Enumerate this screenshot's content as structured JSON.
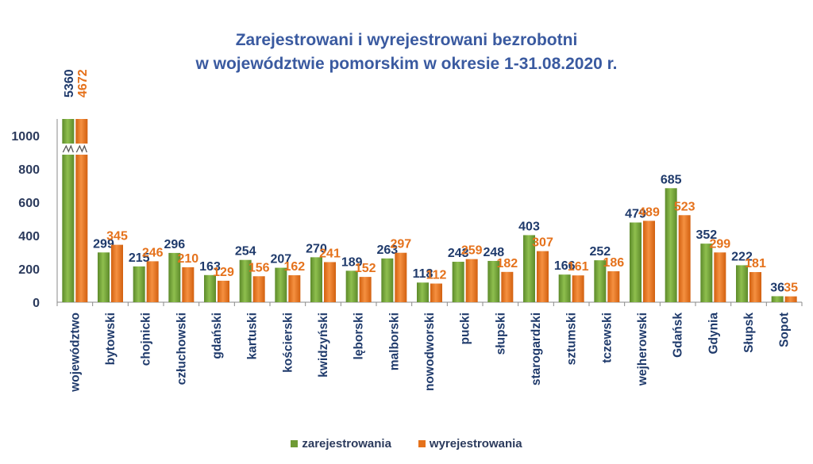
{
  "chart_data": {
    "type": "bar",
    "title_line1": "Zarejestrowani i wyrejestrowani bezrobotni",
    "title_line2": "w województwie pomorskim w okresie 1-31.08.2020 r.",
    "categories": [
      "województwo",
      "bytowski",
      "chojnicki",
      "człuchowski",
      "gdański",
      "kartuski",
      "kościerski",
      "kwidzyński",
      "lęborski",
      "malborski",
      "nowodworski",
      "pucki",
      "słupski",
      "starogardzki",
      "sztumski",
      "tczewski",
      "wejherowski",
      "Gdańsk",
      "Gdynia",
      "Słupsk",
      "Sopot"
    ],
    "series": [
      {
        "name": "zarejestrowania",
        "color": "#6e9a34",
        "values": [
          5360,
          299,
          215,
          296,
          163,
          254,
          207,
          270,
          189,
          263,
          118,
          243,
          248,
          403,
          166,
          252,
          479,
          685,
          352,
          222,
          36
        ]
      },
      {
        "name": "wyrejestrowania",
        "color": "#e5721c",
        "values": [
          4672,
          345,
          246,
          210,
          129,
          156,
          162,
          241,
          152,
          297,
          112,
          259,
          182,
          307,
          161,
          186,
          489,
          523,
          299,
          181,
          35
        ]
      }
    ],
    "y_ticks": [
      0,
      200,
      400,
      600,
      800,
      1000
    ],
    "ylim": [
      0,
      1100
    ],
    "axis_break": true,
    "label_colors": {
      "zarejestrowania": "#1f3a6b",
      "wyrejestrowania": "#e5721c"
    }
  },
  "legend": {
    "items": [
      {
        "label": "zarejestrowania",
        "color": "#6e9a34"
      },
      {
        "label": "wyrejestrowania",
        "color": "#e5721c"
      }
    ]
  }
}
